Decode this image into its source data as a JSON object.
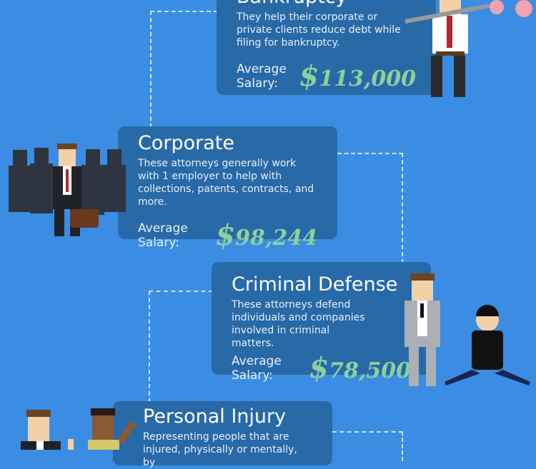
{
  "cards": [
    {
      "title": "Bankruptcy",
      "description": "They help their corporate or private clients reduce debt while filing for bankruptcy.",
      "salary_label": "Average Salary:",
      "currency": "$",
      "salary": "113,000"
    },
    {
      "title": "Corporate",
      "description": "These attorneys generally work with 1 employer to help with collections, patents, contracts, and more.",
      "salary_label": "Average Salary:",
      "currency": "$",
      "salary": "98,244"
    },
    {
      "title": "Criminal Defense",
      "description": "These attorneys defend individuals and companies involved in criminal matters.",
      "salary_label": "Average Salary:",
      "currency": "$",
      "salary": "78,500"
    },
    {
      "title": "Personal Injury",
      "description": "Representing people that are injured, physically or mentally, by"
    }
  ],
  "colors": {
    "background": "#3a8de2",
    "card": "#2869a8",
    "salary": "#8fcf9c"
  }
}
